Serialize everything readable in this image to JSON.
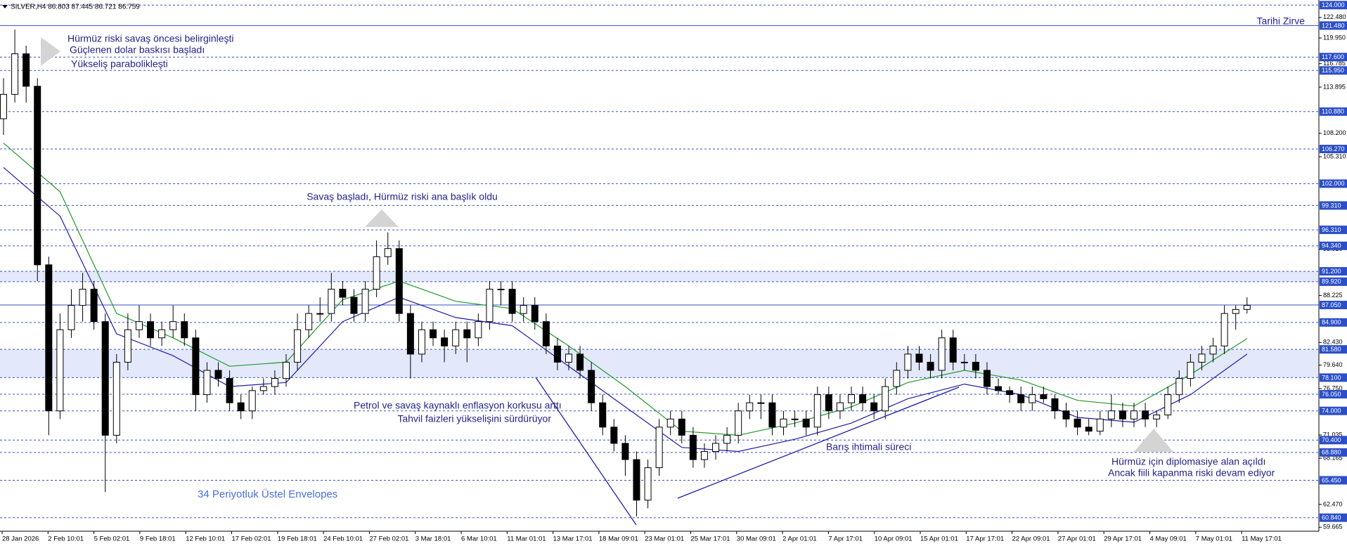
{
  "chart_data": {
    "type": "candlestick",
    "header": "SILVER,H4 86.803 87.445 86.721 86.759",
    "categories": [
      "28 Jan 2026",
      "2 Feb 10:01",
      "5 Feb 02:01",
      "9 Feb 18:01",
      "12 Feb 10:01",
      "17 Feb 02:01",
      "19 Feb 18:01",
      "24 Feb 10:01",
      "27 Feb 02:01",
      "3 Mar 18:01",
      "6 Mar 10:01",
      "11 Mar 01:01",
      "13 Mar 17:01",
      "18 Mar 09:01",
      "23 Mar 01:01",
      "25 Mar 17:01",
      "30 Mar 09:01",
      "2 Apr 01:01",
      "7 Apr 17:01",
      "10 Apr 09:01",
      "15 Apr 01:01",
      "17 Apr 17:01",
      "22 Apr 09:01",
      "27 Apr 01:01",
      "29 Apr 17:01",
      "4 May 09:01",
      "7 May 01:01",
      "11 May 17:01"
    ],
    "candles": [
      [
        110,
        115,
        108,
        113
      ],
      [
        113,
        121,
        112,
        118
      ],
      [
        118,
        119,
        112,
        114
      ],
      [
        114,
        115,
        90,
        92
      ],
      [
        92,
        93,
        71,
        74
      ],
      [
        74,
        86,
        73,
        84
      ],
      [
        84,
        89,
        83,
        87
      ],
      [
        87,
        91,
        85,
        89
      ],
      [
        89,
        90,
        84,
        85
      ],
      [
        85,
        86,
        64,
        71
      ],
      [
        71,
        81,
        70,
        80
      ],
      [
        80,
        86,
        79,
        84
      ],
      [
        84,
        87,
        83,
        85
      ],
      [
        85,
        86,
        82,
        83
      ],
      [
        83,
        85,
        82,
        84
      ],
      [
        84,
        87,
        83,
        85
      ],
      [
        85,
        86,
        82,
        83
      ],
      [
        83,
        84,
        74,
        76
      ],
      [
        76,
        80,
        75,
        79
      ],
      [
        79,
        80,
        77,
        78
      ],
      [
        78,
        79,
        74,
        75
      ],
      [
        75,
        76,
        73,
        74
      ],
      [
        74,
        77,
        73,
        76.5
      ],
      [
        76.5,
        78,
        76,
        77
      ],
      [
        77,
        79,
        76,
        78
      ],
      [
        78,
        81,
        77,
        80
      ],
      [
        80,
        86,
        79,
        84
      ],
      [
        84,
        87,
        83,
        86
      ],
      [
        86,
        88,
        85,
        86
      ],
      [
        86,
        91,
        85,
        89
      ],
      [
        89,
        90,
        87,
        88
      ],
      [
        88,
        89,
        85,
        86
      ],
      [
        86,
        90,
        85,
        89
      ],
      [
        89,
        95,
        88,
        93
      ],
      [
        93,
        96,
        92,
        94
      ],
      [
        94,
        95,
        85,
        86
      ],
      [
        86,
        87,
        78,
        81
      ],
      [
        81,
        85,
        80,
        84
      ],
      [
        84,
        85,
        82,
        83
      ],
      [
        83,
        84,
        80,
        82
      ],
      [
        82,
        85,
        81,
        84
      ],
      [
        84,
        85,
        80,
        83
      ],
      [
        83,
        86,
        82,
        85
      ],
      [
        85,
        90,
        84,
        89
      ],
      [
        89,
        90,
        87,
        89
      ],
      [
        89,
        90,
        85,
        86
      ],
      [
        86,
        88,
        85,
        87
      ],
      [
        87,
        88,
        84,
        85
      ],
      [
        85,
        86,
        81,
        82
      ],
      [
        82,
        83,
        79,
        80
      ],
      [
        80,
        82,
        79,
        81
      ],
      [
        81,
        82,
        78,
        79
      ],
      [
        79,
        80,
        74,
        75
      ],
      [
        75,
        76,
        71,
        72
      ],
      [
        72,
        73,
        69,
        70
      ],
      [
        70,
        71,
        66,
        68
      ],
      [
        68,
        69,
        61,
        63
      ],
      [
        63,
        68,
        62,
        67
      ],
      [
        67,
        73,
        66,
        72
      ],
      [
        72,
        74,
        71,
        73
      ],
      [
        73,
        74,
        70,
        71
      ],
      [
        71,
        72,
        67,
        68
      ],
      [
        68,
        70,
        67,
        69
      ],
      [
        69,
        71,
        68,
        70
      ],
      [
        70,
        72,
        69,
        71
      ],
      [
        71,
        75,
        70,
        74
      ],
      [
        74,
        76,
        73,
        75
      ],
      [
        75,
        76,
        73,
        75
      ],
      [
        75,
        76,
        71,
        72
      ],
      [
        72,
        74,
        71,
        73
      ],
      [
        73,
        74,
        72,
        73
      ],
      [
        73,
        74,
        71,
        72
      ],
      [
        72,
        77,
        71,
        76
      ],
      [
        76,
        77,
        73,
        74
      ],
      [
        74,
        76,
        73,
        75
      ],
      [
        75,
        77,
        74,
        76
      ],
      [
        76,
        77,
        74,
        75
      ],
      [
        75,
        76,
        73,
        74
      ],
      [
        74,
        78,
        73,
        77
      ],
      [
        77,
        80,
        76,
        79
      ],
      [
        79,
        82,
        78,
        81
      ],
      [
        81,
        82,
        79,
        80
      ],
      [
        80,
        81,
        78,
        79
      ],
      [
        79,
        84,
        78,
        83
      ],
      [
        83,
        84,
        79,
        80
      ],
      [
        80,
        81,
        79,
        80
      ],
      [
        80,
        81,
        78,
        79
      ],
      [
        79,
        80,
        76,
        77
      ],
      [
        77,
        78,
        76,
        76.5
      ],
      [
        76.5,
        77,
        75,
        76
      ],
      [
        76,
        77,
        74,
        75
      ],
      [
        75,
        77,
        74,
        76
      ],
      [
        76,
        77,
        75,
        75.5
      ],
      [
        75.5,
        76,
        73,
        74
      ],
      [
        74,
        75,
        72,
        73
      ],
      [
        73,
        74,
        71,
        72
      ],
      [
        72,
        73,
        71,
        71.5
      ],
      [
        71.5,
        74,
        71,
        73
      ],
      [
        73,
        76,
        72,
        74
      ],
      [
        74,
        75,
        72,
        73
      ],
      [
        73,
        75,
        72,
        74
      ],
      [
        74,
        75,
        72,
        73
      ],
      [
        73,
        74,
        72,
        73.5
      ],
      [
        73.5,
        77,
        73,
        76
      ],
      [
        76,
        79,
        75,
        78
      ],
      [
        78,
        81,
        77,
        80
      ],
      [
        80,
        82,
        79,
        81
      ],
      [
        81,
        83,
        80,
        82
      ],
      [
        82,
        87,
        81,
        86
      ],
      [
        86,
        87,
        84,
        86.5
      ],
      [
        86.5,
        88,
        86,
        87
      ]
    ],
    "envelopes": [
      {
        "color": "#1f9a2a",
        "x": [
          0,
          5,
          10,
          15,
          20,
          25,
          30,
          35,
          40,
          45,
          50,
          55,
          60,
          65,
          70,
          75,
          80,
          85,
          90,
          95,
          100,
          105,
          110
        ],
        "values": [
          107,
          101,
          86,
          83,
          79.5,
          80,
          87.7,
          90,
          87.5,
          86.6,
          82,
          77,
          71.5,
          71,
          72.5,
          74.5,
          77.5,
          79,
          77.8,
          75.3,
          74.6,
          78.5,
          82.9
        ]
      },
      {
        "color": "#1c1ca8",
        "x": [
          0,
          5,
          10,
          15,
          20,
          25,
          30,
          35,
          40,
          45,
          50,
          55,
          60,
          65,
          70,
          75,
          80,
          85,
          90,
          95,
          100,
          105,
          110
        ],
        "values": [
          104,
          98,
          83.5,
          80.8,
          77,
          77.5,
          85,
          88,
          85.5,
          84.5,
          79.5,
          74.5,
          69.5,
          69,
          70.5,
          72.5,
          75.5,
          77.3,
          76,
          73.2,
          72.6,
          76,
          81
        ]
      }
    ],
    "ylim": [
      59.17,
      124.63
    ],
    "yticks": [
      {
        "value": 122.48,
        "label": "122.480"
      },
      {
        "value": 119.95,
        "label": "119.950"
      },
      {
        "value": 116.785,
        "label": "116.785"
      },
      {
        "value": 113.895,
        "label": "113.895"
      },
      {
        "value": 108.2,
        "label": "108.200"
      },
      {
        "value": 105.31,
        "label": "105.310"
      },
      {
        "value": 93.92,
        "label": "93.920"
      },
      {
        "value": 88.225,
        "label": "88.225"
      },
      {
        "value": 82.43,
        "label": "82.430"
      },
      {
        "value": 79.64,
        "label": "79.640"
      },
      {
        "value": 76.75,
        "label": "76.750"
      },
      {
        "value": 71.035,
        "label": "71.035"
      },
      {
        "value": 68.165,
        "label": "68.165"
      },
      {
        "value": 62.47,
        "label": "62.470"
      },
      {
        "value": 59.665,
        "label": "59.665"
      }
    ],
    "levels": [
      {
        "value": 124,
        "label": "124.000"
      },
      {
        "value": 121.48,
        "label": "121.480",
        "solid": true
      },
      {
        "value": 117.6,
        "label": "117.600"
      },
      {
        "value": 115.95,
        "label": "115.950"
      },
      {
        "value": 110.88,
        "label": "110.880"
      },
      {
        "value": 106.27,
        "label": "106.270"
      },
      {
        "value": 102,
        "label": "102.000"
      },
      {
        "value": 99.31,
        "label": "99.310"
      },
      {
        "value": 96.31,
        "label": "96.310"
      },
      {
        "value": 94.34,
        "label": "94.340"
      },
      {
        "value": 91.2,
        "label": "91.200"
      },
      {
        "value": 89.92,
        "label": "89.920"
      },
      {
        "value": 87.05,
        "label": "87.050",
        "solid": true
      },
      {
        "value": 84.9,
        "label": "84.900"
      },
      {
        "value": 81.58,
        "label": "81.580"
      },
      {
        "value": 78.1,
        "label": "78.100"
      },
      {
        "value": 76.05,
        "label": "76.050"
      },
      {
        "value": 74,
        "label": "74.000"
      },
      {
        "value": 70.4,
        "label": "70.400"
      },
      {
        "value": 68.88,
        "label": "68.880"
      },
      {
        "value": 65.45,
        "label": "65.450"
      },
      {
        "value": 60.84,
        "label": "60.840"
      }
    ],
    "zones": [
      [
        89.92,
        91.2
      ],
      [
        78.1,
        81.58
      ]
    ],
    "annotations": {
      "record": "Tarihi Zirve",
      "pre_war": [
        "Hürmüz riski savaş öncesi belirginleşti",
        "Güçlenen dolar baskısı başladı",
        "Yükseliş parabolikleşti"
      ],
      "war": "Savaş başladı, Hürmüz riski ana başlık oldu",
      "inflation": [
        "Petrol ve savaş kaynaklı enflasyon korkusu arttı",
        "Tahvil faizleri yükselişini sürdürüyor"
      ],
      "peace": "Barış ihtimali süreci",
      "envelopes": "34 Periyotluk Üstel Envelopes",
      "diplomacy": [
        "Hürmüz için diplomasiye alan açıldı",
        "Ancak fiili kapanma riski devam ediyor"
      ]
    }
  }
}
